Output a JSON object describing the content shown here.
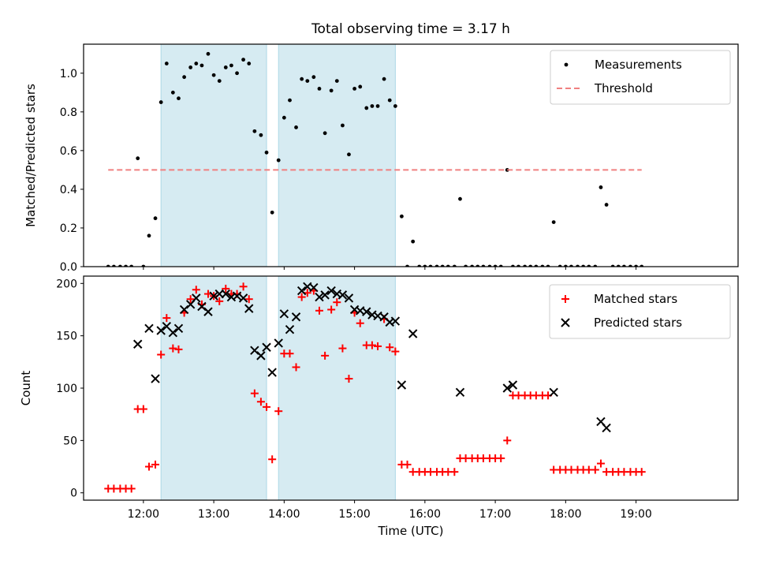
{
  "title": "Total observing time = 3.17 h",
  "chart_data": [
    {
      "type": "scatter",
      "ylabel": "Matched/Predicted stars",
      "xlim": [
        11.15,
        20.45
      ],
      "ylim": [
        0,
        1.15
      ],
      "yticks": [
        0.0,
        0.2,
        0.4,
        0.6,
        0.8,
        1.0
      ],
      "ytick_labels": [
        "0.0",
        "0.2",
        "0.4",
        "0.6",
        "0.8",
        "1.0"
      ],
      "observing_windows": [
        [
          12.25,
          13.75
        ],
        [
          13.92,
          15.58
        ]
      ],
      "legend": {
        "placement": "upper right",
        "entries": [
          "Measurements",
          "Threshold"
        ]
      },
      "series": [
        {
          "name": "Measurements",
          "marker": "dot",
          "color": "#000000",
          "x": [
            11.5,
            11.58,
            11.67,
            11.75,
            11.83,
            12.0,
            12.08,
            12.17,
            12.25,
            12.33,
            12.42,
            12.5,
            12.58,
            12.67,
            12.75,
            12.83,
            12.92,
            13.0,
            13.08,
            13.17,
            13.25,
            13.33,
            13.42,
            13.5,
            13.58,
            13.67,
            13.75,
            13.83,
            13.92,
            14.0,
            14.08,
            14.17,
            14.25,
            14.33,
            14.42,
            14.5,
            14.58,
            14.67,
            14.75,
            14.83,
            14.92,
            15.0,
            15.08,
            15.17,
            15.25,
            15.33,
            15.42,
            15.5,
            15.58,
            15.67,
            15.75,
            15.83,
            15.92,
            16.0,
            16.08,
            16.17,
            16.25,
            16.33,
            16.42,
            16.5,
            16.58,
            16.67,
            16.75,
            16.83,
            16.92,
            17.0,
            17.08,
            17.17,
            17.25,
            17.33,
            17.42,
            17.5,
            17.58,
            17.67,
            17.75,
            17.83,
            17.92,
            18.0,
            18.08,
            18.17,
            18.25,
            18.33,
            18.42,
            18.5,
            18.58,
            18.67,
            18.75,
            18.83,
            18.92,
            19.0,
            19.08
          ],
          "y": [
            0,
            0,
            0,
            0,
            0,
            0,
            0.16,
            0.25,
            0.85,
            1.05,
            0.9,
            0.87,
            0.98,
            1.03,
            1.05,
            1.04,
            1.1,
            0.99,
            0.96,
            1.03,
            1.04,
            1.0,
            1.07,
            1.05,
            0.7,
            0.68,
            0.59,
            0.28,
            0.55,
            0.77,
            0.86,
            0.72,
            0.97,
            0.96,
            0.98,
            0.92,
            0.69,
            0.91,
            0.96,
            0.73,
            0.58,
            0.92,
            0.93,
            0.82,
            0.83,
            0.83,
            0.97,
            0.86,
            0.83,
            0.26,
            0,
            0.13,
            0,
            0,
            0,
            0,
            0,
            0,
            0,
            0.35,
            0,
            0,
            0,
            0,
            0,
            0,
            0,
            0.5,
            0,
            0,
            0,
            0,
            0,
            0,
            0,
            0.23,
            0,
            0,
            0,
            0,
            0,
            0,
            0,
            0.41,
            0.32,
            0,
            0,
            0,
            0,
            0,
            0
          ]
        },
        {
          "name": "",
          "marker": "dot",
          "color": "#000000",
          "x": [
            11.92
          ],
          "y": [
            0.56
          ]
        },
        {
          "name": "Threshold",
          "marker": "dashed-line",
          "color": "#f08080",
          "x": [
            11.5,
            19.08
          ],
          "y": [
            0.5,
            0.5
          ]
        }
      ]
    },
    {
      "type": "scatter",
      "ylabel": "Count",
      "xlabel": "Time (UTC)",
      "xlim": [
        11.15,
        20.45
      ],
      "ylim": [
        -7,
        207
      ],
      "yticks": [
        0,
        50,
        100,
        150,
        200
      ],
      "ytick_labels": [
        "0",
        "50",
        "100",
        "150",
        "200"
      ],
      "xticks": [
        12,
        13,
        14,
        15,
        16,
        17,
        18,
        19
      ],
      "xtick_labels": [
        "12:00",
        "13:00",
        "14:00",
        "15:00",
        "16:00",
        "17:00",
        "18:00",
        "19:00"
      ],
      "observing_windows": [
        [
          12.25,
          13.75
        ],
        [
          13.92,
          15.58
        ]
      ],
      "legend": {
        "placement": "upper right",
        "entries": [
          "Matched stars",
          "Predicted stars"
        ]
      },
      "series": [
        {
          "name": "Matched stars",
          "marker": "plus",
          "color": "#ff0000",
          "x": [
            11.5,
            11.58,
            11.67,
            11.75,
            11.83,
            11.92,
            12.0,
            12.08,
            12.17,
            12.25,
            12.33,
            12.42,
            12.5,
            12.58,
            12.67,
            12.75,
            12.83,
            12.92,
            13.0,
            13.08,
            13.17,
            13.25,
            13.33,
            13.42,
            13.5,
            13.58,
            13.67,
            13.75,
            13.83,
            13.92,
            14.0,
            14.08,
            14.17,
            14.25,
            14.33,
            14.42,
            14.5,
            14.58,
            14.67,
            14.75,
            14.83,
            14.92,
            15.0,
            15.08,
            15.17,
            15.25,
            15.33,
            15.42,
            15.5,
            15.58,
            15.67,
            15.75,
            15.83,
            15.92,
            16.0,
            16.08,
            16.17,
            16.25,
            16.33,
            16.42,
            16.5,
            16.58,
            16.67,
            16.75,
            16.83,
            16.92,
            17.0,
            17.08,
            17.17,
            17.25,
            17.33,
            17.42,
            17.5,
            17.58,
            17.67,
            17.75,
            17.83,
            17.92,
            18.0,
            18.08,
            18.17,
            18.25,
            18.33,
            18.42,
            18.5,
            18.58,
            18.67,
            18.75,
            18.83,
            18.92,
            19.0,
            19.08
          ],
          "y": [
            4,
            4,
            4,
            4,
            4,
            80,
            80,
            25,
            27,
            132,
            167,
            138,
            137,
            172,
            185,
            194,
            180,
            190,
            188,
            183,
            195,
            190,
            190,
            197,
            185,
            95,
            87,
            82,
            32,
            78,
            133,
            133,
            120,
            187,
            191,
            193,
            174,
            131,
            175,
            182,
            138,
            109,
            172,
            162,
            141,
            141,
            140,
            166,
            139,
            135,
            27,
            27,
            20,
            20,
            20,
            20,
            20,
            20,
            20,
            20,
            33,
            33,
            33,
            33,
            33,
            33,
            33,
            33,
            50,
            93,
            93,
            93,
            93,
            93,
            93,
            93,
            22,
            22,
            22,
            22,
            22,
            22,
            22,
            22,
            28,
            20,
            20,
            20,
            20,
            20,
            20,
            20
          ]
        },
        {
          "name": "Predicted stars",
          "marker": "x",
          "color": "#000000",
          "x": [
            11.92,
            12.08,
            12.17,
            12.25,
            12.33,
            12.42,
            12.5,
            12.58,
            12.67,
            12.75,
            12.83,
            12.92,
            13.0,
            13.08,
            13.17,
            13.25,
            13.33,
            13.42,
            13.5,
            13.58,
            13.67,
            13.75,
            13.83,
            13.92,
            14.0,
            14.08,
            14.17,
            14.25,
            14.33,
            14.42,
            14.5,
            14.58,
            14.67,
            14.75,
            14.83,
            14.92,
            15.0,
            15.08,
            15.17,
            15.25,
            15.33,
            15.42,
            15.5,
            15.58,
            15.67,
            15.83,
            16.5,
            17.17,
            17.25,
            17.83,
            18.5,
            18.58
          ],
          "y": [
            142,
            157,
            109,
            155,
            159,
            153,
            157,
            175,
            180,
            186,
            178,
            173,
            188,
            190,
            190,
            187,
            188,
            186,
            176,
            136,
            131,
            139,
            115,
            143,
            171,
            156,
            168,
            193,
            197,
            196,
            187,
            189,
            193,
            190,
            189,
            186,
            175,
            174,
            173,
            170,
            169,
            168,
            163,
            164,
            103,
            152,
            96,
            100,
            103,
            96,
            68,
            62
          ]
        }
      ]
    }
  ]
}
